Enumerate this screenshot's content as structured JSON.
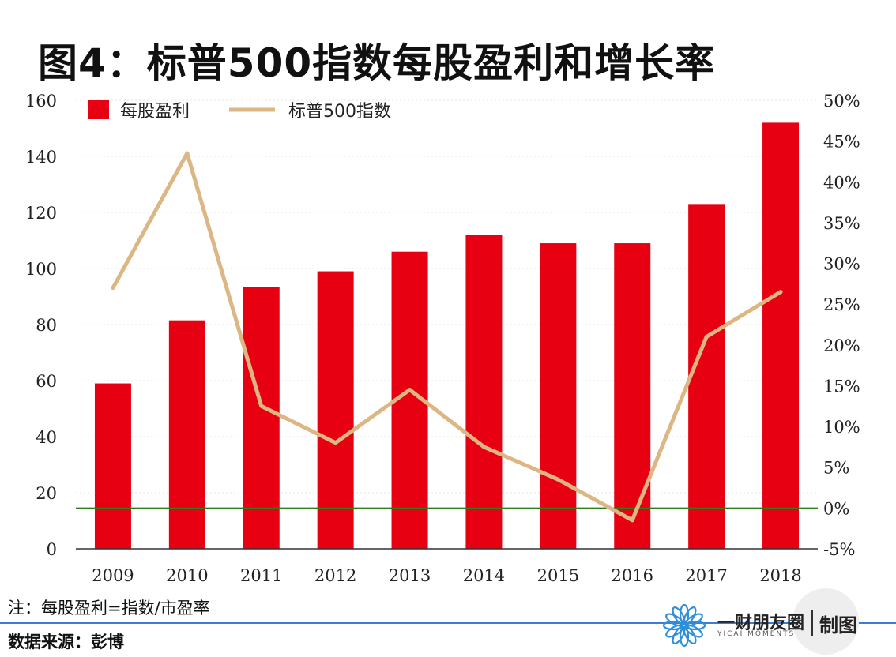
{
  "title": "图4：标普500指数每股盈利和增长率",
  "note": "注：每股盈利=指数/市盈率",
  "source": "数据来源：彭博",
  "brand": {
    "name": "一财朋友圈",
    "subtitle": "YICAI MOMENTS",
    "suffix": "制图"
  },
  "colors": {
    "bar": "#e60012",
    "line": "#dcb784",
    "zero_line": "#2e7d1a",
    "axis": "#333333",
    "grid": "#e6e6e6"
  },
  "chart_data": {
    "type": "bar",
    "categories": [
      "2009",
      "2010",
      "2011",
      "2012",
      "2013",
      "2014",
      "2015",
      "2016",
      "2017",
      "2018"
    ],
    "series": [
      {
        "name": "每股盈利",
        "type": "bar",
        "axis": "left",
        "values": [
          59,
          81.5,
          93.5,
          99,
          106,
          112,
          109,
          109,
          123,
          152
        ]
      },
      {
        "name": "标普500指数",
        "type": "line",
        "axis": "right",
        "values": [
          27.0,
          43.5,
          12.5,
          8.0,
          14.5,
          7.5,
          3.5,
          -1.5,
          21.0,
          26.5
        ]
      }
    ],
    "y_left": {
      "min": 0,
      "max": 160,
      "ticks": [
        0,
        20,
        40,
        60,
        80,
        100,
        120,
        140,
        160
      ]
    },
    "y_right": {
      "min": -5,
      "max": 50,
      "unit": "%",
      "ticks": [
        -5,
        0,
        5,
        10,
        15,
        20,
        25,
        30,
        35,
        40,
        45,
        50
      ]
    },
    "legend": "top-left",
    "grid": true
  }
}
